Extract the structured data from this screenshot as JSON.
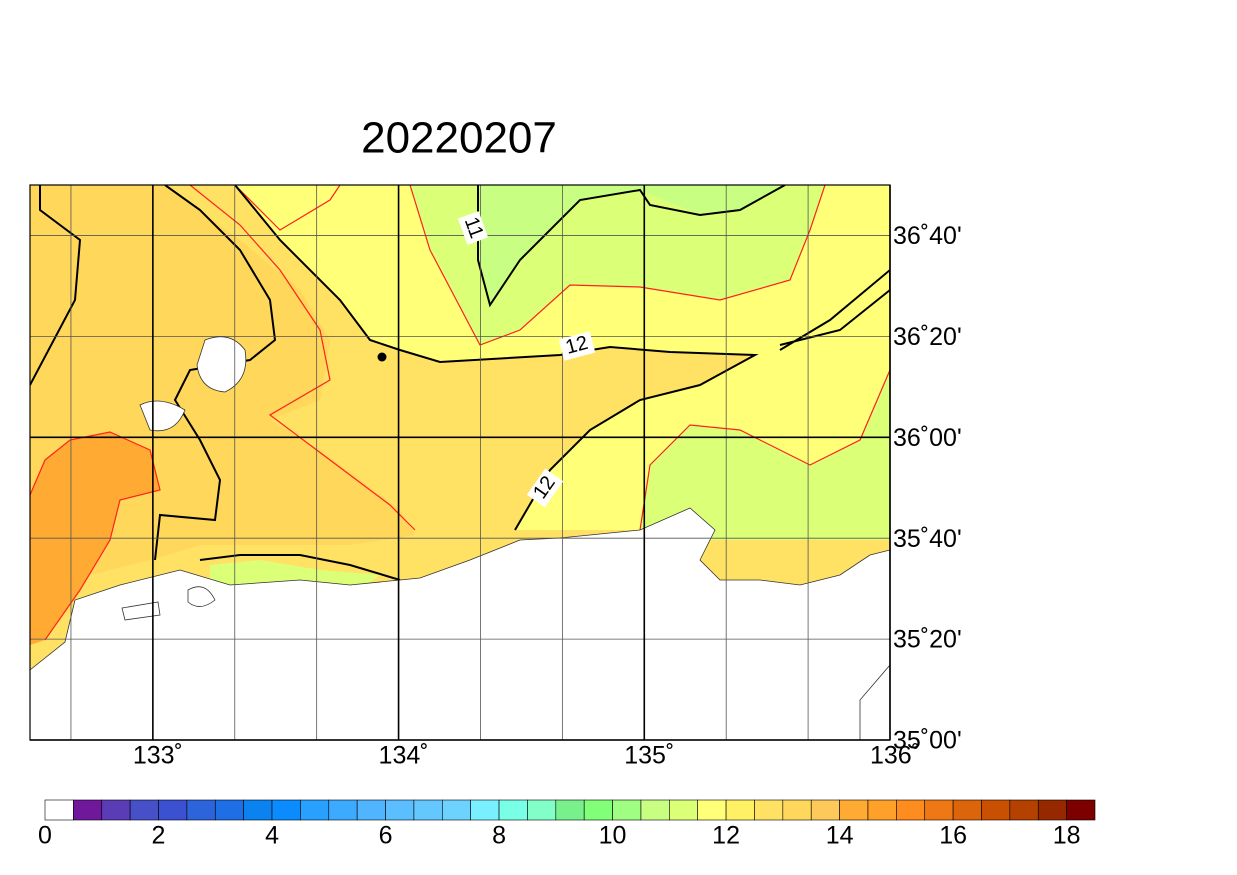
{
  "title": "20220207",
  "map": {
    "xlim": [
      132.5,
      136
    ],
    "ylim": [
      35,
      36.8333
    ],
    "xticks": [
      {
        "value": 133,
        "label": "133˚"
      },
      {
        "value": 134,
        "label": "134˚"
      },
      {
        "value": 135,
        "label": "135˚"
      },
      {
        "value": 136,
        "label": "136˚"
      }
    ],
    "yticks": [
      {
        "value": 35,
        "label": "35˚00'"
      },
      {
        "value": 35.3333,
        "label": "35˚20'"
      },
      {
        "value": 35.6667,
        "label": "35˚40'"
      },
      {
        "value": 36,
        "label": "36˚00'"
      },
      {
        "value": 36.3333,
        "label": "36˚20'"
      },
      {
        "value": 36.6667,
        "label": "36˚40'"
      }
    ],
    "grid": true
  },
  "colorbar": {
    "levels": [
      0,
      0.5,
      1,
      1.5,
      2,
      2.5,
      3,
      3.5,
      4,
      4.5,
      5,
      5.5,
      6,
      6.5,
      7,
      7.5,
      8,
      8.5,
      9,
      9.5,
      10,
      10.5,
      11,
      11.5,
      12,
      12.5,
      13,
      13.5,
      14,
      14.5,
      15,
      15.5,
      16,
      16.5,
      17,
      17.5,
      18
    ],
    "colors": [
      "#ffffff",
      "#70189c",
      "#5a3cb4",
      "#4850c8",
      "#3c50d2",
      "#2d64dc",
      "#1e6ee6",
      "#0a82f0",
      "#0a8cff",
      "#28a0ff",
      "#3caaff",
      "#50b4ff",
      "#5abeff",
      "#64c8ff",
      "#6ed2ff",
      "#78f0ff",
      "#78ffe6",
      "#82ffc8",
      "#78f08c",
      "#82ff78",
      "#a0ff82",
      "#c8ff82",
      "#dcff78",
      "#ffff78",
      "#fff064",
      "#ffe164",
      "#ffd75a",
      "#ffc85a",
      "#ffaa32",
      "#ffa028",
      "#ff8c1e",
      "#f07814",
      "#dc640a",
      "#c85000",
      "#b44100",
      "#962800",
      "#7d0000"
    ],
    "ticks": [
      0,
      2,
      4,
      6,
      8,
      10,
      12,
      14,
      16,
      18
    ]
  },
  "contour_labels": [
    11,
    12,
    12
  ]
}
